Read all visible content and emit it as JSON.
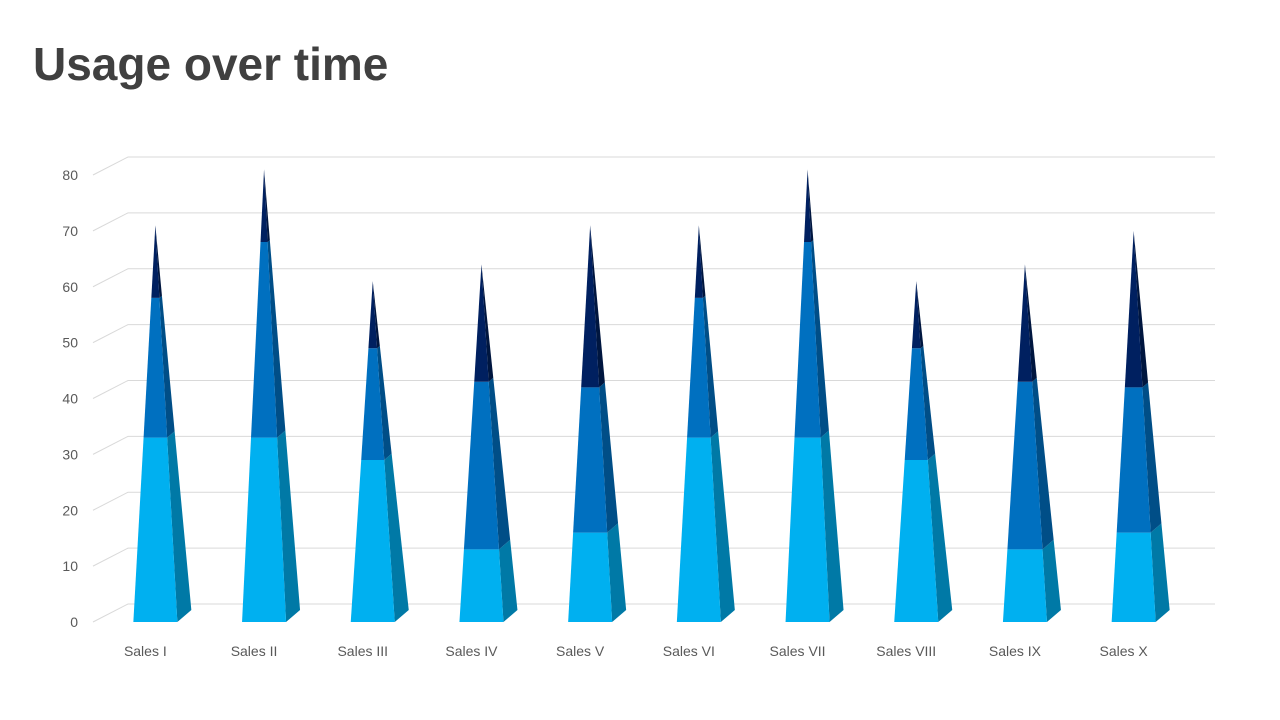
{
  "title": "Usage over time",
  "colors": {
    "segment_bottom": "#00B0F0",
    "segment_bottom_side": "#0079A6",
    "segment_middle": "#0070C0",
    "segment_middle_side": "#004E87",
    "segment_top": "#002060",
    "segment_top_side": "#00163F",
    "gridline": "#D9D9D9",
    "axis_text": "#595959",
    "title_text": "#404040"
  },
  "chart_data": {
    "type": "bar",
    "stacked": true,
    "shape": "pyramid-3d",
    "title": "",
    "xlabel": "",
    "ylabel": "",
    "ylim": [
      0,
      80
    ],
    "yticks": [
      0,
      10,
      20,
      30,
      40,
      50,
      60,
      70,
      80
    ],
    "grid": true,
    "legend": "none",
    "categories": [
      "Sales I",
      "Sales II",
      "Sales III",
      "Sales IV",
      "Sales V",
      "Sales VI",
      "Sales VII",
      "Sales VIII",
      "Sales IX",
      "Sales X"
    ],
    "series": [
      {
        "values": [
          33,
          33,
          29,
          13,
          16,
          33,
          33,
          29,
          13,
          16
        ]
      },
      {
        "values": [
          25,
          35,
          20,
          30,
          26,
          25,
          35,
          20,
          30,
          26
        ]
      },
      {
        "values": [
          13,
          13,
          12,
          21,
          29,
          13,
          13,
          12,
          21,
          28
        ]
      }
    ]
  }
}
